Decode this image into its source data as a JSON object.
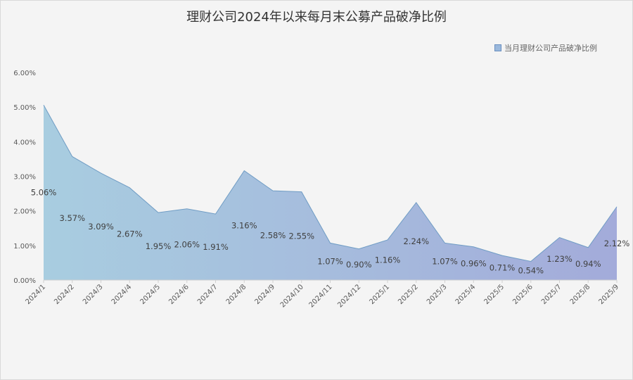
{
  "chart_data": {
    "type": "area",
    "title": "理财公司2024年以来每月末公募产品破净比例",
    "legend": {
      "label": "当月理财公司产品破净比例",
      "position": "top-right"
    },
    "categories": [
      "2024/1",
      "2024/2",
      "2024/3",
      "2024/4",
      "2024/5",
      "2024/6",
      "2024/7",
      "2024/8",
      "2024/9",
      "2024/10",
      "2024/11",
      "2024/12",
      "2025/1",
      "2025/2",
      "2025/3",
      "2025/4",
      "2025/5",
      "2025/6",
      "2025/7",
      "2025/8",
      "2025/9"
    ],
    "series": [
      {
        "name": "当月理财公司产品破净比例",
        "values": [
          5.06,
          3.57,
          3.09,
          2.67,
          1.95,
          2.06,
          1.91,
          3.16,
          2.58,
          2.55,
          1.07,
          0.9,
          1.16,
          2.24,
          1.07,
          0.96,
          0.71,
          0.54,
          1.23,
          0.94,
          2.12
        ]
      }
    ],
    "y_ticks": [
      "0.00%",
      "1.00%",
      "2.00%",
      "3.00%",
      "4.00%",
      "5.00%",
      "6.00%"
    ],
    "ylim": [
      0,
      6
    ],
    "xlabel": "",
    "ylabel": "",
    "grid": false,
    "colors": {
      "fill_start": "#a8cde0",
      "fill_end": "#a3abda",
      "line": "#6f9cc4"
    }
  }
}
